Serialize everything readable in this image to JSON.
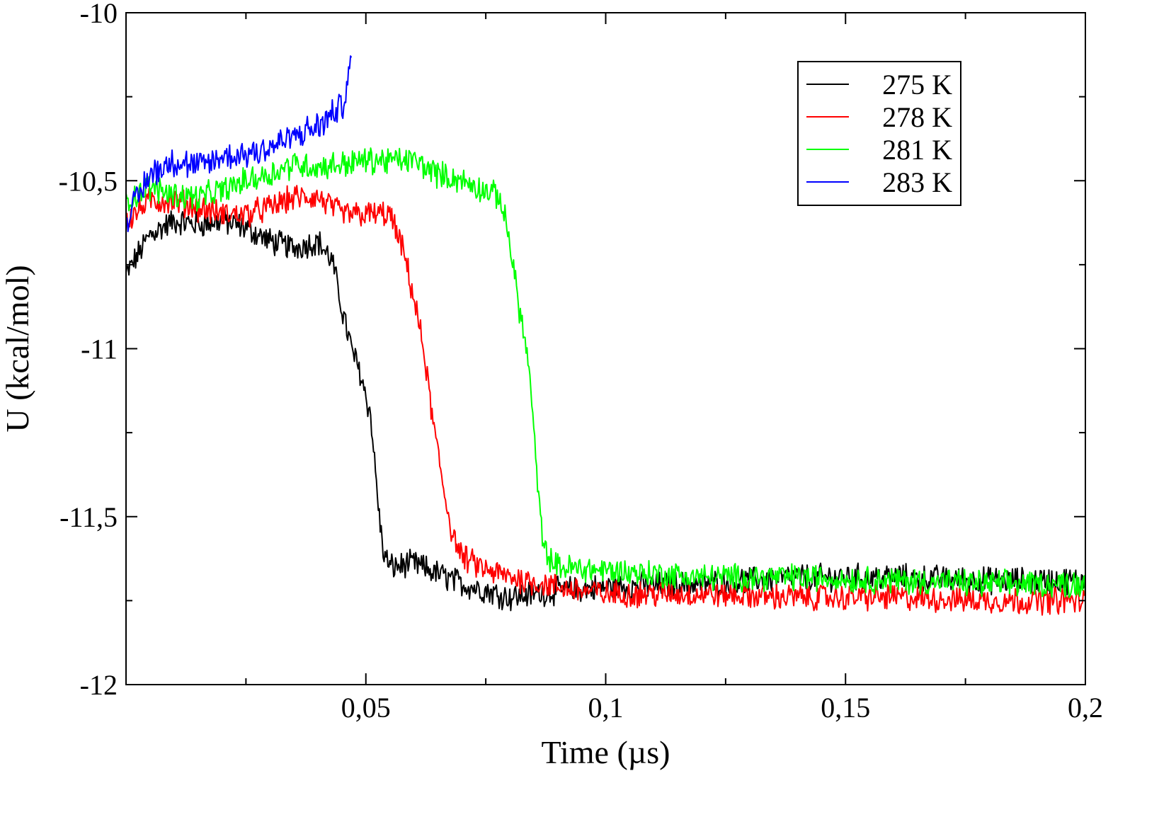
{
  "chart_data": {
    "type": "line",
    "title": "",
    "xlabel": "Time (µs)",
    "ylabel": "U (kcal/mol)",
    "xlim": [
      0,
      0.2
    ],
    "ylim": [
      -12,
      -10
    ],
    "x_ticks": [
      {
        "value": 0.05,
        "label": "0,05"
      },
      {
        "value": 0.1,
        "label": "0,1"
      },
      {
        "value": 0.15,
        "label": "0,15"
      },
      {
        "value": 0.2,
        "label": "0,2"
      }
    ],
    "y_ticks": [
      {
        "value": -10,
        "label": "-10"
      },
      {
        "value": -10.5,
        "label": "-10,5"
      },
      {
        "value": -11,
        "label": "-11"
      },
      {
        "value": -11.5,
        "label": "-11,5"
      },
      {
        "value": -12,
        "label": "-12"
      }
    ],
    "x_minor_step": 0.025,
    "y_minor_step": 0.25,
    "legend_position": "top-right",
    "series": [
      {
        "name": "275 K",
        "color": "#000000",
        "x": [
          0,
          0.005,
          0.01,
          0.015,
          0.02,
          0.025,
          0.03,
          0.035,
          0.04,
          0.043,
          0.045,
          0.047,
          0.049,
          0.051,
          0.0525,
          0.0535,
          0.055,
          0.06,
          0.065,
          0.07,
          0.075,
          0.08,
          0.09,
          0.1,
          0.12,
          0.14,
          0.16,
          0.18,
          0.2
        ],
        "values": [
          -10.78,
          -10.66,
          -10.62,
          -10.63,
          -10.62,
          -10.64,
          -10.68,
          -10.7,
          -10.68,
          -10.74,
          -10.88,
          -11.0,
          -11.08,
          -11.2,
          -11.45,
          -11.6,
          -11.65,
          -11.64,
          -11.67,
          -11.7,
          -11.72,
          -11.74,
          -11.72,
          -11.71,
          -11.7,
          -11.68,
          -11.68,
          -11.69,
          -11.69
        ],
        "noise": 0.035
      },
      {
        "name": "278 K",
        "color": "#ff0000",
        "x": [
          0,
          0.005,
          0.01,
          0.015,
          0.02,
          0.025,
          0.03,
          0.035,
          0.04,
          0.045,
          0.05,
          0.055,
          0.058,
          0.06,
          0.062,
          0.064,
          0.066,
          0.068,
          0.07,
          0.075,
          0.08,
          0.09,
          0.1,
          0.12,
          0.14,
          0.16,
          0.18,
          0.2
        ],
        "values": [
          -10.62,
          -10.56,
          -10.56,
          -10.58,
          -10.6,
          -10.6,
          -10.58,
          -10.55,
          -10.55,
          -10.6,
          -10.6,
          -10.6,
          -10.72,
          -10.85,
          -11.0,
          -11.22,
          -11.4,
          -11.55,
          -11.62,
          -11.66,
          -11.68,
          -11.71,
          -11.73,
          -11.73,
          -11.74,
          -11.74,
          -11.75,
          -11.75
        ],
        "noise": 0.035
      },
      {
        "name": "281 K",
        "color": "#00ff00",
        "x": [
          0,
          0.005,
          0.01,
          0.015,
          0.02,
          0.025,
          0.03,
          0.035,
          0.04,
          0.045,
          0.05,
          0.055,
          0.06,
          0.065,
          0.07,
          0.075,
          0.078,
          0.08,
          0.082,
          0.084,
          0.0855,
          0.087,
          0.09,
          0.1,
          0.12,
          0.14,
          0.16,
          0.18,
          0.2
        ],
        "values": [
          -10.56,
          -10.52,
          -10.54,
          -10.55,
          -10.53,
          -10.5,
          -10.48,
          -10.45,
          -10.46,
          -10.45,
          -10.44,
          -10.44,
          -10.44,
          -10.48,
          -10.5,
          -10.53,
          -10.55,
          -10.68,
          -10.88,
          -11.05,
          -11.35,
          -11.6,
          -11.65,
          -11.66,
          -11.68,
          -11.68,
          -11.69,
          -11.7,
          -11.7
        ],
        "noise": 0.035
      },
      {
        "name": "283 K",
        "color": "#0000ff",
        "x": [
          0,
          0.005,
          0.01,
          0.015,
          0.02,
          0.025,
          0.03,
          0.035,
          0.04,
          0.045,
          0.047
        ],
        "values": [
          -10.62,
          -10.48,
          -10.44,
          -10.46,
          -10.43,
          -10.42,
          -10.4,
          -10.37,
          -10.34,
          -10.28,
          -10.15
        ],
        "noise": 0.04
      }
    ]
  }
}
